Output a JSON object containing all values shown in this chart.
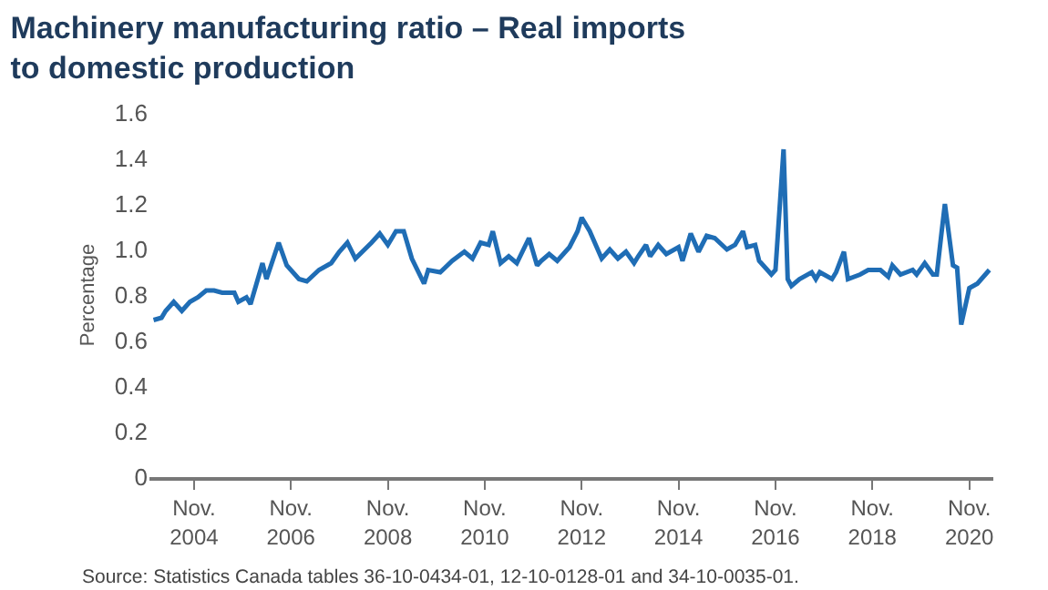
{
  "chart_data": {
    "type": "line",
    "title": "Machinery manufacturing ratio – Real imports\nto domestic production",
    "ylabel": "Percentage",
    "annotations": [
      "Source: Statistics Canada tables 36-10-0434-01, 12-10-0128-01 and 34-10-0035-01."
    ],
    "x": [
      "2004-01",
      "2004-03",
      "2004-04",
      "2004-06",
      "2004-08",
      "2004-10",
      "2004-12",
      "2005-02",
      "2005-04",
      "2005-06",
      "2005-09",
      "2005-10",
      "2005-12",
      "2006-01",
      "2006-04",
      "2006-05",
      "2006-08",
      "2006-10",
      "2007-01",
      "2007-03",
      "2007-06",
      "2007-09",
      "2007-11",
      "2008-01",
      "2008-03",
      "2008-07",
      "2008-09",
      "2008-11",
      "2009-01",
      "2009-03",
      "2009-05",
      "2009-08",
      "2009-09",
      "2009-12",
      "2010-03",
      "2010-06",
      "2010-08",
      "2010-10",
      "2010-12",
      "2011-01",
      "2011-03",
      "2011-05",
      "2011-07",
      "2011-10",
      "2011-12",
      "2012-01",
      "2012-03",
      "2012-05",
      "2012-08",
      "2012-10",
      "2012-11",
      "2013-01",
      "2013-04",
      "2013-06",
      "2013-08",
      "2013-10",
      "2013-12",
      "2014-01",
      "2014-03",
      "2014-04",
      "2014-06",
      "2014-08",
      "2014-11",
      "2014-12",
      "2015-02",
      "2015-04",
      "2015-06",
      "2015-08",
      "2015-11",
      "2016-01",
      "2016-03",
      "2016-04",
      "2016-06",
      "2016-07",
      "2016-09",
      "2016-10",
      "2016-11",
      "2017-01",
      "2017-02",
      "2017-03",
      "2017-05",
      "2017-08",
      "2017-09",
      "2017-10",
      "2018-01",
      "2018-02",
      "2018-04",
      "2018-05",
      "2018-08",
      "2018-10",
      "2019-01",
      "2019-03",
      "2019-04",
      "2019-06",
      "2019-09",
      "2019-10",
      "2019-12",
      "2020-02",
      "2020-03",
      "2020-04",
      "2020-05",
      "2020-07",
      "2020-08",
      "2020-09",
      "2020-11",
      "2021-01",
      "2021-04"
    ],
    "series": [
      {
        "color": "#1f6db5",
        "values": [
          0.69,
          0.7,
          0.73,
          0.77,
          0.73,
          0.77,
          0.79,
          0.82,
          0.82,
          0.81,
          0.81,
          0.77,
          0.79,
          0.76,
          0.94,
          0.87,
          1.03,
          0.93,
          0.87,
          0.86,
          0.91,
          0.94,
          0.99,
          1.03,
          0.96,
          1.03,
          1.07,
          1.02,
          1.08,
          1.08,
          0.96,
          0.85,
          0.91,
          0.9,
          0.95,
          0.99,
          0.96,
          1.03,
          1.02,
          1.08,
          0.94,
          0.97,
          0.94,
          1.05,
          0.93,
          0.95,
          0.98,
          0.95,
          1.01,
          1.08,
          1.14,
          1.08,
          0.96,
          1.0,
          0.96,
          0.99,
          0.94,
          0.97,
          1.02,
          0.97,
          1.02,
          0.98,
          1.01,
          0.95,
          1.07,
          0.99,
          1.06,
          1.05,
          1.0,
          1.02,
          1.08,
          1.01,
          1.02,
          0.95,
          0.91,
          0.89,
          0.91,
          1.44,
          0.87,
          0.84,
          0.87,
          0.9,
          0.87,
          0.9,
          0.87,
          0.9,
          0.99,
          0.87,
          0.89,
          0.91,
          0.91,
          0.88,
          0.93,
          0.89,
          0.91,
          0.89,
          0.94,
          0.89,
          0.89,
          1.05,
          1.2,
          0.93,
          0.92,
          0.67,
          0.83,
          0.85,
          0.91
        ]
      }
    ],
    "xlim": [
      "2003-12",
      "2021-05"
    ],
    "xticks": [
      {
        "value": "2004-11",
        "label": "Nov.\n2004"
      },
      {
        "value": "2006-11",
        "label": "Nov.\n2006"
      },
      {
        "value": "2008-11",
        "label": "Nov.\n2008"
      },
      {
        "value": "2010-11",
        "label": "Nov.\n2010"
      },
      {
        "value": "2012-11",
        "label": "Nov.\n2012"
      },
      {
        "value": "2014-11",
        "label": "Nov.\n2014"
      },
      {
        "value": "2016-11",
        "label": "Nov.\n2016"
      },
      {
        "value": "2018-11",
        "label": "Nov.\n2018"
      },
      {
        "value": "2020-11",
        "label": "Nov.\n2020"
      }
    ],
    "ylim": [
      0,
      1.6
    ],
    "yticks": [
      0,
      0.2,
      0.4,
      0.6,
      0.8,
      {
        "value": 1,
        "label": "1.0"
      },
      1.2,
      1.4,
      1.6
    ],
    "grid": false,
    "marker": "none",
    "line_style": "solid"
  }
}
